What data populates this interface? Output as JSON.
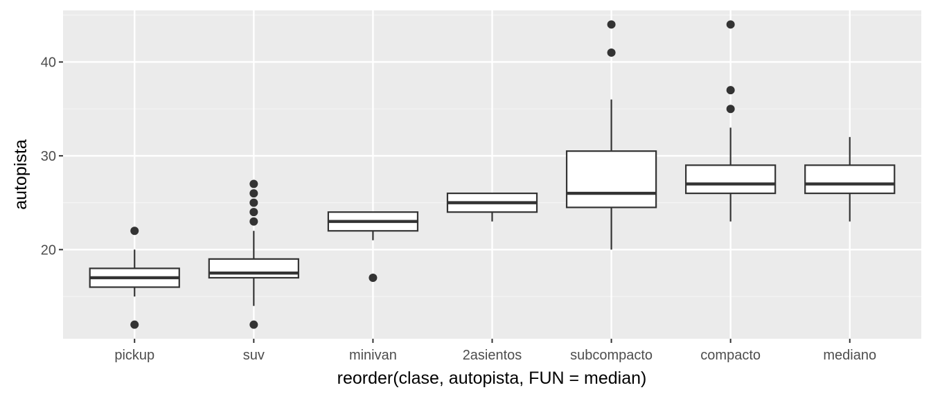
{
  "chart_data": {
    "type": "boxplot",
    "title": "",
    "xlabel": "reorder(clase, autopista, FUN = median)",
    "ylabel": "autopista",
    "ylim": [
      10.5,
      45.5
    ],
    "yticks": [
      20,
      30,
      40
    ],
    "grid": true,
    "categories": [
      "pickup",
      "suv",
      "minivan",
      "2asientos",
      "subcompacto",
      "compacto",
      "mediano"
    ],
    "boxes": [
      {
        "category": "pickup",
        "whisker_low": 15,
        "q1": 16,
        "median": 17,
        "q3": 18,
        "whisker_high": 20,
        "outliers": [
          12,
          22
        ]
      },
      {
        "category": "suv",
        "whisker_low": 14,
        "q1": 17,
        "median": 17.5,
        "q3": 19,
        "whisker_high": 22,
        "outliers": [
          12,
          23,
          24,
          25,
          26,
          27
        ]
      },
      {
        "category": "minivan",
        "whisker_low": 21,
        "q1": 22,
        "median": 23,
        "q3": 24,
        "whisker_high": 24,
        "outliers": [
          17
        ]
      },
      {
        "category": "2asientos",
        "whisker_low": 23,
        "q1": 24,
        "median": 25,
        "q3": 26,
        "whisker_high": 26,
        "outliers": []
      },
      {
        "category": "subcompacto",
        "whisker_low": 20,
        "q1": 24.5,
        "median": 26,
        "q3": 30.5,
        "whisker_high": 36,
        "outliers": [
          41,
          44
        ]
      },
      {
        "category": "compacto",
        "whisker_low": 23,
        "q1": 26,
        "median": 27,
        "q3": 29,
        "whisker_high": 33,
        "outliers": [
          35,
          37,
          44
        ]
      },
      {
        "category": "mediano",
        "whisker_low": 23,
        "q1": 26,
        "median": 27,
        "q3": 29,
        "whisker_high": 32,
        "outliers": []
      }
    ],
    "colors": {
      "panel": "#ebebeb",
      "grid_major": "#ffffff",
      "grid_minor": "#f5f5f5",
      "box_fill": "#ffffff",
      "box_line": "#333333",
      "tick": "#333333"
    }
  }
}
